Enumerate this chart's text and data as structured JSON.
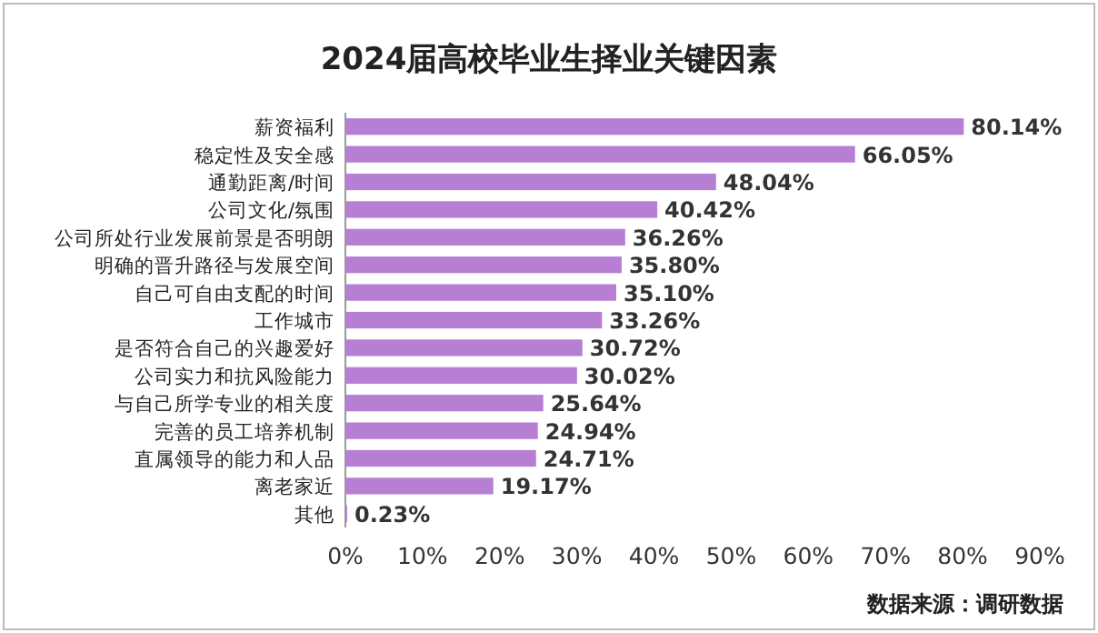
{
  "chart_data": {
    "type": "bar",
    "orientation": "horizontal",
    "title": "2024届高校毕业生择业关键因素",
    "categories": [
      "薪资福利",
      "稳定性及安全感",
      "通勤距离/时间",
      "公司文化/氛围",
      "公司所处行业发展前景是否明朗",
      "明确的晋升路径与发展空间",
      "自己可自由支配的时间",
      "工作城市",
      "是否符合自己的兴趣爱好",
      "公司实力和抗风险能力",
      "与自己所学专业的相关度",
      "完善的员工培养机制",
      "直属领导的能力和人品",
      "离老家近",
      "其他"
    ],
    "values": [
      80.14,
      66.05,
      48.04,
      40.42,
      36.26,
      35.8,
      35.1,
      33.26,
      30.72,
      30.02,
      25.64,
      24.94,
      24.71,
      19.17,
      0.23
    ],
    "value_labels": [
      "80.14%",
      "66.05%",
      "48.04%",
      "40.42%",
      "36.26%",
      "35.80%",
      "35.10%",
      "33.26%",
      "30.72%",
      "30.02%",
      "25.64%",
      "24.94%",
      "24.71%",
      "19.17%",
      "0.23%"
    ],
    "color": "#b77fd4",
    "xlim": [
      0,
      90
    ],
    "xticks": [
      {
        "value": 0,
        "label": "0%"
      },
      {
        "value": 10,
        "label": "10%"
      },
      {
        "value": 20,
        "label": "20%"
      },
      {
        "value": 30,
        "label": "30%"
      },
      {
        "value": 40,
        "label": "40%"
      },
      {
        "value": 50,
        "label": "50%"
      },
      {
        "value": 60,
        "label": "60%"
      },
      {
        "value": 70,
        "label": "70%"
      },
      {
        "value": 80,
        "label": "80%"
      },
      {
        "value": 90,
        "label": "90%"
      }
    ],
    "annotations": [
      "数据来源：调研数据"
    ]
  }
}
